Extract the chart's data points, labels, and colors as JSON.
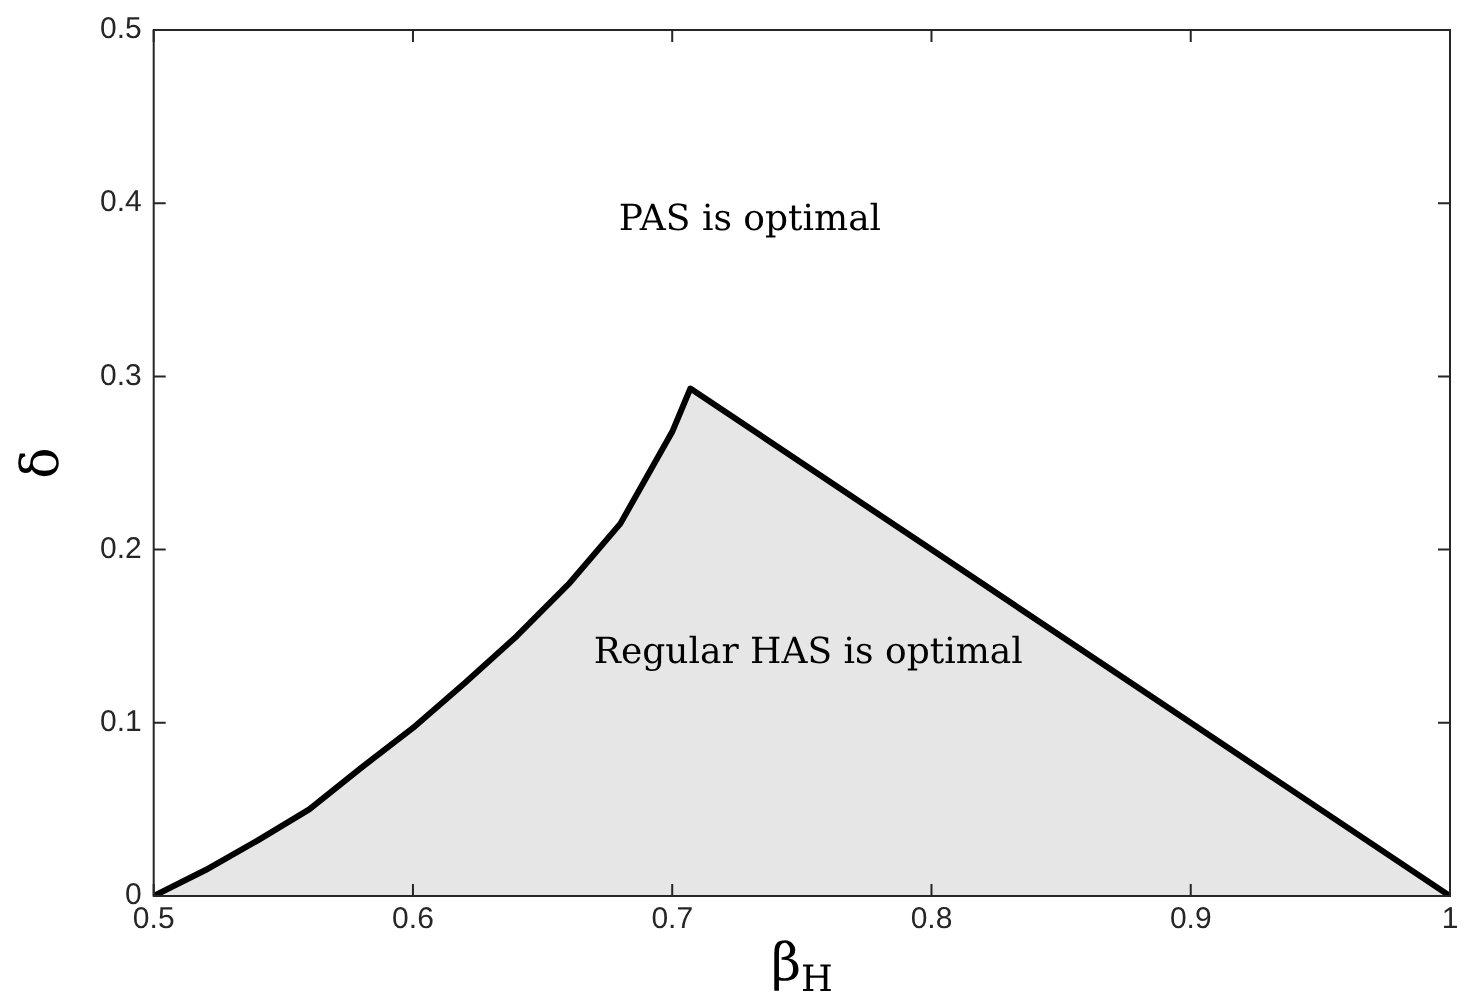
{
  "chart_data": {
    "type": "area",
    "xlabel": "β$_{H}$",
    "ylabel": "δ",
    "series": [
      {
        "color": "#000000",
        "x": [
          0.5,
          0.52,
          0.54,
          0.56,
          0.58,
          0.6,
          0.62,
          0.64,
          0.66,
          0.68,
          0.7,
          0.707,
          0.8,
          0.9,
          1
        ],
        "values": [
          0,
          0.015,
          0.032,
          0.05,
          0.074,
          0.097,
          0.123,
          0.15,
          0.18,
          0.215,
          0.268,
          0.293,
          0.2,
          0.1,
          0
        ]
      }
    ],
    "xlim": [
      0.5,
      1
    ],
    "xticks": [
      0.5,
      0.6,
      0.7,
      0.8,
      0.9,
      1
    ],
    "ylim": [
      0,
      0.5
    ],
    "yticks": [
      0,
      0.1,
      0.2,
      0.3,
      0.4,
      0.5
    ],
    "grid": false,
    "legend": false,
    "annotations": [
      "PAS is optimal",
      "Regular HAS is optimal"
    ]
  }
}
